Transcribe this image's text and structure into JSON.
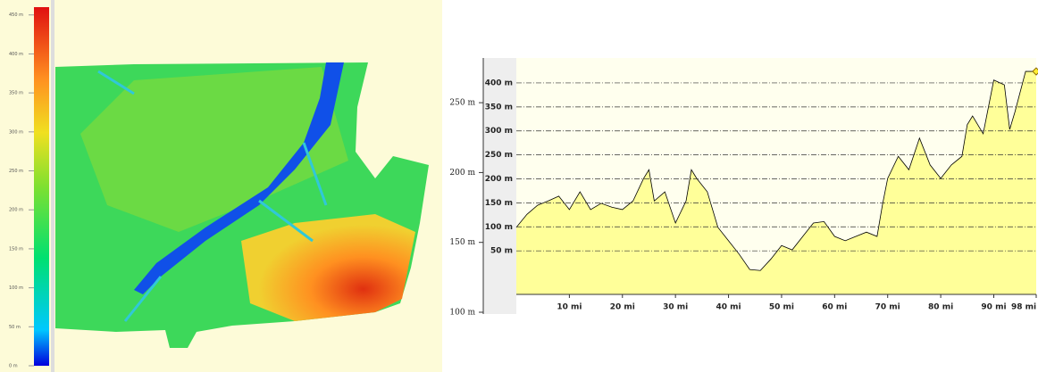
{
  "chart_data": [
    {
      "type": "colorbar",
      "ylim": [
        0,
        460
      ],
      "yticks": [
        {
          "value": 0,
          "label": "0 m"
        },
        {
          "value": 50,
          "label": "50 m"
        },
        {
          "value": 100,
          "label": "100 m"
        },
        {
          "value": 150,
          "label": "150 m"
        },
        {
          "value": 200,
          "label": "200 m"
        },
        {
          "value": 250,
          "label": "250 m"
        },
        {
          "value": 300,
          "label": "300 m"
        },
        {
          "value": 350,
          "label": "350 m"
        },
        {
          "value": 400,
          "label": "400 m"
        },
        {
          "value": 450,
          "label": "450 m"
        }
      ]
    },
    {
      "type": "area",
      "x": [
        0,
        2,
        4,
        6,
        8,
        10,
        12,
        14,
        16,
        18,
        20,
        22,
        24,
        25,
        26,
        28,
        30,
        32,
        33,
        34,
        36,
        38,
        40,
        42,
        44,
        46,
        48,
        50,
        52,
        54,
        56,
        58,
        60,
        62,
        64,
        66,
        68,
        69,
        70,
        72,
        74,
        76,
        78,
        80,
        82,
        84,
        85,
        86,
        88,
        90,
        92,
        93,
        94,
        96,
        98
      ],
      "series": [
        {
          "values": [
            99,
            126,
            145,
            154,
            164,
            136,
            173,
            136,
            149,
            141,
            136,
            154,
            201,
            219,
            154,
            173,
            108,
            154,
            219,
            201,
            173,
            99,
            71,
            43,
            11,
            9,
            33,
            61,
            52,
            80,
            108,
            111,
            80,
            71,
            80,
            89,
            80,
            145,
            201,
            247,
            219,
            285,
            229,
            201,
            229,
            247,
            313,
            331,
            294,
            406,
            396,
            303,
            340,
            424,
            424
          ],
          "color": "#ffff99",
          "line_color": "#000000",
          "axis": "y2"
        }
      ],
      "xlim": [
        0,
        98
      ],
      "xticks": [
        {
          "value": 10,
          "label": "10 mi"
        },
        {
          "value": 20,
          "label": "20 mi"
        },
        {
          "value": 30,
          "label": "30 mi"
        },
        {
          "value": 40,
          "label": "40 mi"
        },
        {
          "value": 50,
          "label": "50 mi"
        },
        {
          "value": 60,
          "label": "60 mi"
        },
        {
          "value": 70,
          "label": "70 mi"
        },
        {
          "value": 80,
          "label": "80 mi"
        },
        {
          "value": 90,
          "label": "90 mi"
        },
        {
          "value": 98,
          "label": "98 mi"
        }
      ],
      "ylim": [
        100,
        282
      ],
      "yticks": [
        {
          "value": 100,
          "label": "100 m"
        },
        {
          "value": 150,
          "label": "150 m"
        },
        {
          "value": 200,
          "label": "200 m"
        },
        {
          "value": 250,
          "label": "250 m"
        }
      ],
      "y2lim": [
        -78,
        452
      ],
      "y2ticks": [
        {
          "value": 50,
          "label": "50 m"
        },
        {
          "value": 100,
          "label": "100 m"
        },
        {
          "value": 150,
          "label": "150 m"
        },
        {
          "value": 200,
          "label": "200 m"
        },
        {
          "value": 250,
          "label": "250 m"
        },
        {
          "value": 300,
          "label": "300 m"
        },
        {
          "value": 350,
          "label": "350 m"
        },
        {
          "value": 400,
          "label": "400 m"
        }
      ],
      "grid": true
    }
  ]
}
